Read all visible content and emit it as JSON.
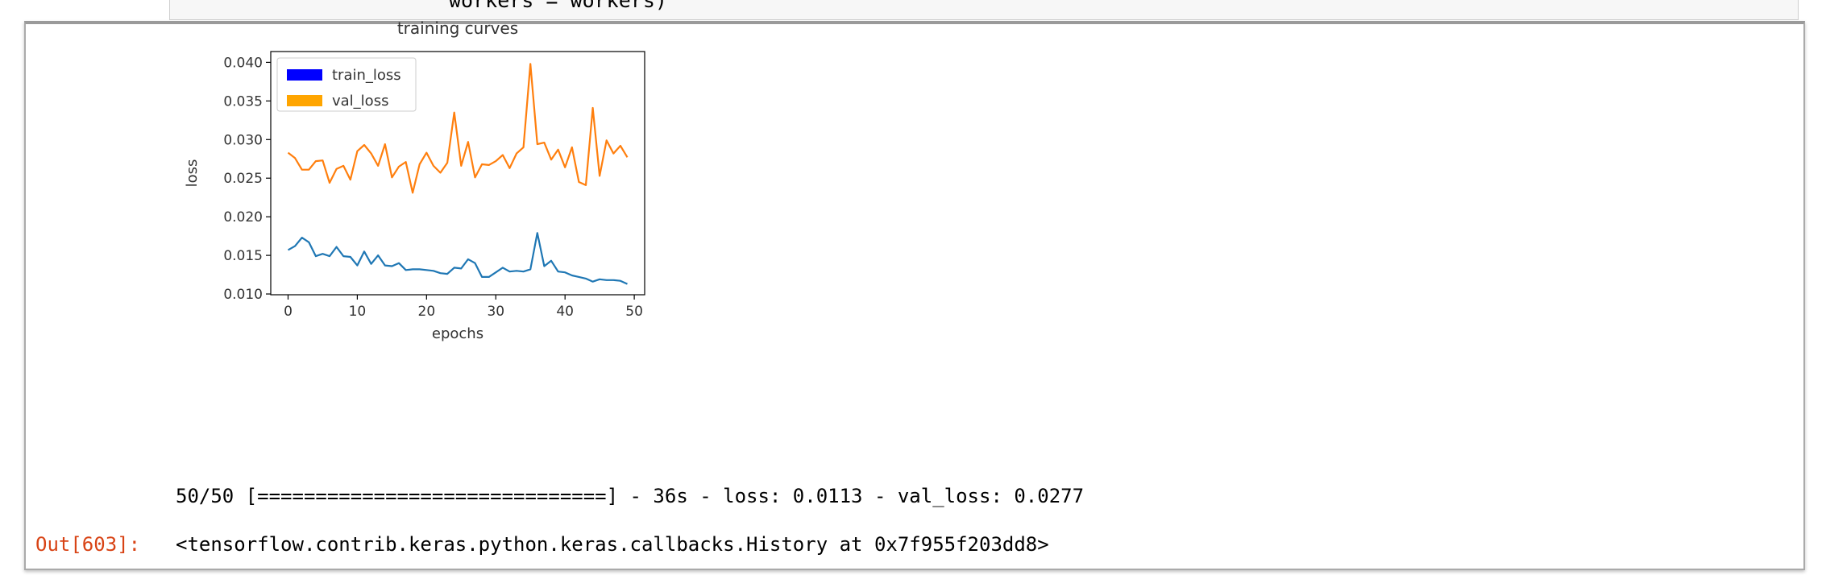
{
  "input_cell": {
    "code_line": "workers = workers)"
  },
  "output": {
    "progress_text": "50/50 [==============================] - 36s - loss: 0.0113 - val_loss: 0.0277",
    "prompt": "Out[603]:",
    "result_text": "<tensorflow.contrib.keras.python.keras.callbacks.History at 0x7f955f203dd8>"
  },
  "chart_data": {
    "type": "line",
    "title": "training curves",
    "xlabel": "epochs",
    "ylabel": "loss",
    "xlim": [
      -2.5,
      51.5
    ],
    "ylim": [
      0.0099,
      0.0414
    ],
    "xticks": [
      0,
      10,
      20,
      30,
      40,
      50
    ],
    "yticks": [
      0.01,
      0.015,
      0.02,
      0.025,
      0.03,
      0.035,
      0.04
    ],
    "ytick_labels": [
      "0.010",
      "0.015",
      "0.020",
      "0.025",
      "0.030",
      "0.035",
      "0.040"
    ],
    "legend_position": "top-left",
    "legend": [
      {
        "label": "train_loss",
        "color": "#0000ff"
      },
      {
        "label": "val_loss",
        "color": "#ffa500"
      }
    ],
    "x": [
      0,
      1,
      2,
      3,
      4,
      5,
      6,
      7,
      8,
      9,
      10,
      11,
      12,
      13,
      14,
      15,
      16,
      17,
      18,
      19,
      20,
      21,
      22,
      23,
      24,
      25,
      26,
      27,
      28,
      29,
      30,
      31,
      32,
      33,
      34,
      35,
      36,
      37,
      38,
      39,
      40,
      41,
      42,
      43,
      44,
      45,
      46,
      47,
      48,
      49
    ],
    "series": [
      {
        "name": "train_loss",
        "color": "#1f77b4",
        "values": [
          0.0157,
          0.0162,
          0.0173,
          0.0167,
          0.0149,
          0.0152,
          0.0149,
          0.0161,
          0.0149,
          0.0148,
          0.0137,
          0.0155,
          0.0139,
          0.015,
          0.0137,
          0.0136,
          0.014,
          0.0131,
          0.0132,
          0.0132,
          0.0131,
          0.013,
          0.0127,
          0.0126,
          0.0134,
          0.0133,
          0.0145,
          0.014,
          0.0122,
          0.0122,
          0.0128,
          0.0134,
          0.0129,
          0.013,
          0.0129,
          0.0132,
          0.0179,
          0.0136,
          0.0143,
          0.0129,
          0.0128,
          0.0124,
          0.0122,
          0.012,
          0.0116,
          0.0119,
          0.0118,
          0.0118,
          0.0117,
          0.0113
        ]
      },
      {
        "name": "val_loss",
        "color": "#ff7f0e",
        "values": [
          0.0283,
          0.0276,
          0.0261,
          0.0261,
          0.0272,
          0.0273,
          0.0244,
          0.0262,
          0.0266,
          0.0248,
          0.0285,
          0.0293,
          0.0282,
          0.0266,
          0.0294,
          0.0251,
          0.0265,
          0.0271,
          0.0231,
          0.0268,
          0.0283,
          0.0266,
          0.0257,
          0.027,
          0.0335,
          0.0266,
          0.0297,
          0.0251,
          0.0268,
          0.0267,
          0.0272,
          0.028,
          0.0263,
          0.0282,
          0.029,
          0.0398,
          0.0294,
          0.0296,
          0.0274,
          0.0287,
          0.0264,
          0.029,
          0.0245,
          0.0241,
          0.0341,
          0.0253,
          0.0299,
          0.0282,
          0.0292,
          0.0277
        ]
      }
    ]
  }
}
